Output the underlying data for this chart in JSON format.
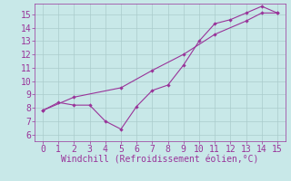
{
  "xlabel": "Windchill (Refroidissement éolien,°C)",
  "xlim": [
    -0.5,
    15.5
  ],
  "ylim": [
    5.5,
    15.8
  ],
  "xticks": [
    0,
    1,
    2,
    3,
    4,
    5,
    6,
    7,
    8,
    9,
    10,
    11,
    12,
    13,
    14,
    15
  ],
  "yticks": [
    6,
    7,
    8,
    9,
    10,
    11,
    12,
    13,
    14,
    15
  ],
  "background_color": "#c8e8e8",
  "line_color": "#993399",
  "line1_x": [
    0,
    1,
    2,
    3,
    4,
    5,
    6,
    7,
    8,
    9,
    10,
    11,
    12,
    13,
    14,
    15
  ],
  "line1_y": [
    7.8,
    8.4,
    8.2,
    8.2,
    7.0,
    6.4,
    8.1,
    9.3,
    9.7,
    11.2,
    13.0,
    14.3,
    14.6,
    15.1,
    15.6,
    15.1
  ],
  "line2_x": [
    0,
    2,
    5,
    7,
    9,
    11,
    13,
    14,
    15
  ],
  "line2_y": [
    7.8,
    8.8,
    9.5,
    10.8,
    12.0,
    13.5,
    14.5,
    15.1,
    15.1
  ],
  "font_color": "#993399",
  "grid_color": "#aacccc",
  "tick_fontsize": 7,
  "xlabel_fontsize": 7
}
